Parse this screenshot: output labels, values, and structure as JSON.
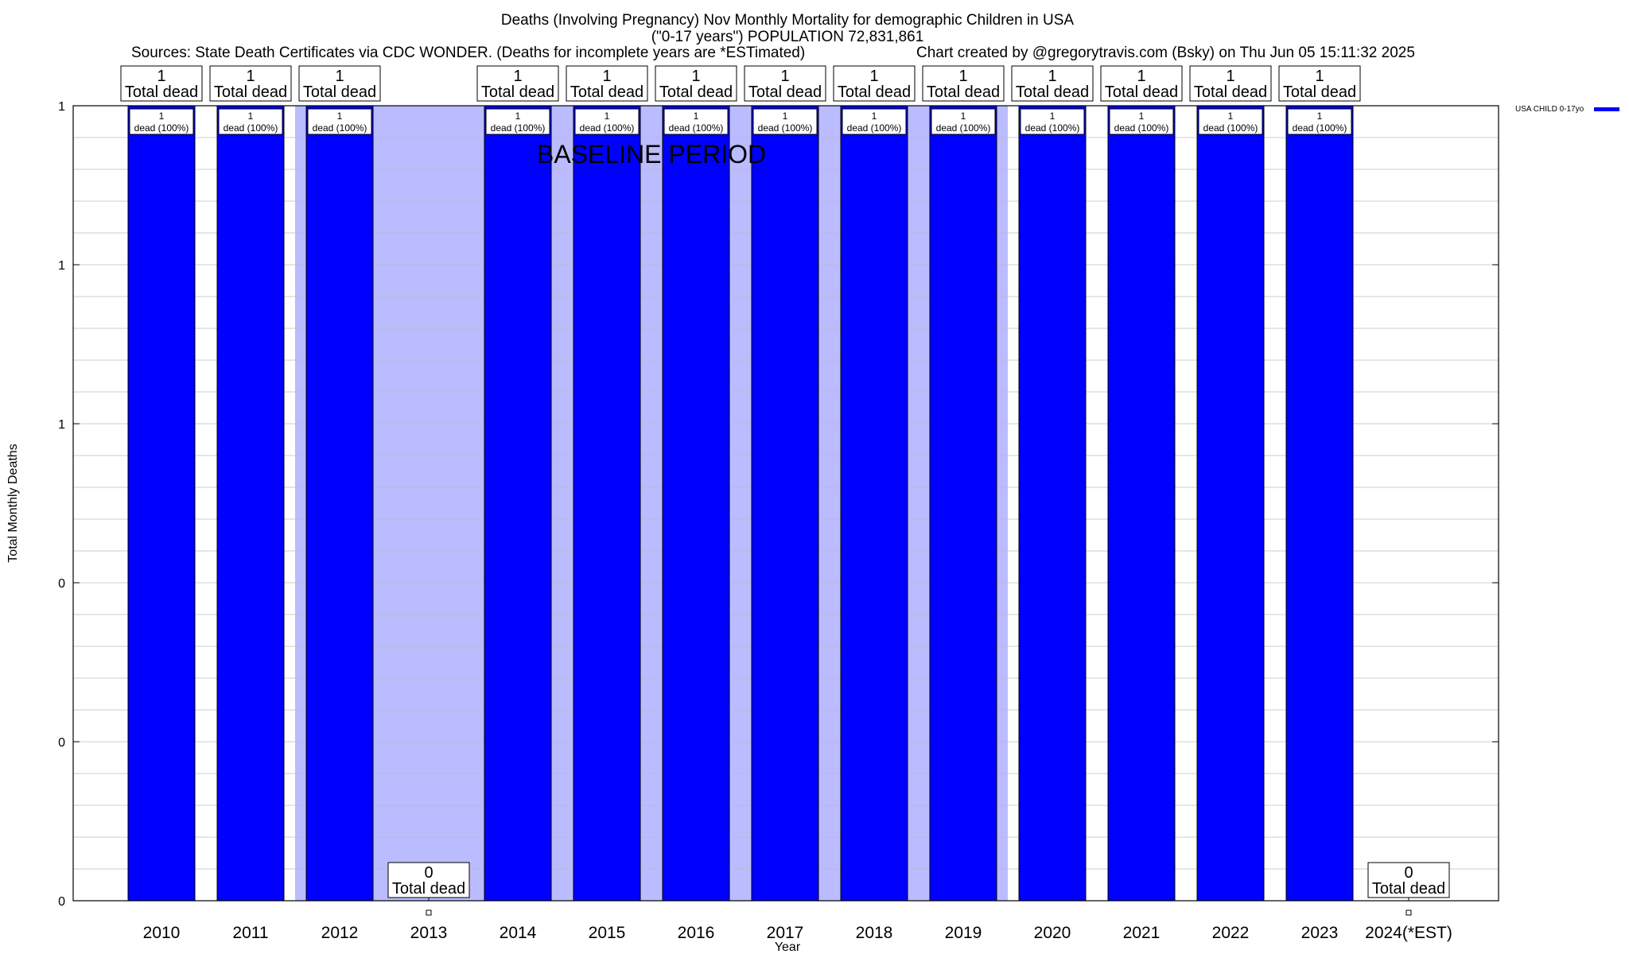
{
  "chart_data": {
    "type": "bar",
    "title": "Deaths (Involving Pregnancy) Nov Monthly Mortality for demographic Children in USA",
    "subtitle": "(\"0-17 years\") POPULATION 72,831,861",
    "sources": "Sources: State Death Certificates via CDC WONDER. (Deaths for incomplete years are *ESTimated)",
    "credit": "Chart created by @gregorytravis.com (Bsky) on Thu Jun 05 15:11:32 2025",
    "xlabel": "Year",
    "ylabel": "Total Monthly Deaths",
    "ylim": [
      0,
      1
    ],
    "y_ticks": [
      0,
      0.2,
      0.4,
      0.6,
      0.8,
      1
    ],
    "y_tick_labels": [
      "0",
      "0",
      "0",
      "1",
      "1",
      "1"
    ],
    "grid": true,
    "legend_position": "top-right",
    "categories": [
      "2010",
      "2011",
      "2012",
      "2013",
      "2014",
      "2015",
      "2016",
      "2017",
      "2018",
      "2019",
      "2020",
      "2021",
      "2022",
      "2023",
      "2024(*EST)"
    ],
    "series": [
      {
        "name": "USA CHILD 0-17yo",
        "color": "#0000ff",
        "values": [
          1,
          1,
          1,
          0,
          1,
          1,
          1,
          1,
          1,
          1,
          1,
          1,
          1,
          1,
          0
        ]
      }
    ],
    "total_labels": [
      "1",
      "1",
      "1",
      "0",
      "1",
      "1",
      "1",
      "1",
      "1",
      "1",
      "1",
      "1",
      "1",
      "1",
      "0"
    ],
    "total_suffix": "Total dead",
    "bar_inner_labels": [
      "1 dead (100%)",
      "1 dead (100%)",
      "1 dead (100%)",
      "",
      "1 dead (100%)",
      "1 dead (100%)",
      "1 dead (100%)",
      "1 dead (100%)",
      "1 dead (100%)",
      "1 dead (100%)",
      "1 dead (100%)",
      "1 dead (100%)",
      "1 dead (100%)",
      "1 dead (100%)",
      ""
    ],
    "inner_count": "1",
    "inner_text": "dead (100%)",
    "baseline_label": "BASELINE PERIOD",
    "baseline_range": [
      "2012",
      "2019"
    ],
    "colors": {
      "bar": "#0000ff",
      "baseline_shade": "#bbbbff",
      "grid": "#bbbbbb"
    }
  }
}
